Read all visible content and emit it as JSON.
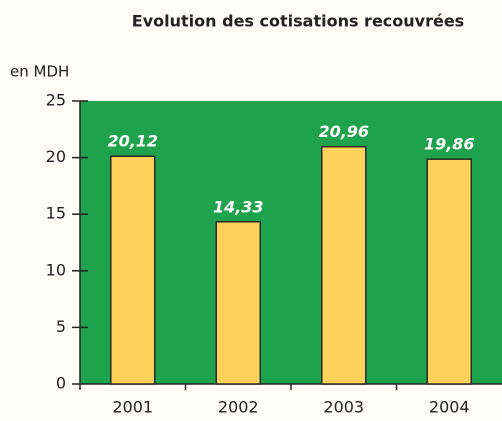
{
  "chart_data": {
    "type": "bar",
    "title": "Evolution des cotisations recouvrées",
    "ylabel": "en MDH",
    "categories": [
      "2001",
      "2002",
      "2003",
      "2004"
    ],
    "values": [
      20.12,
      14.33,
      20.96,
      19.86
    ],
    "value_labels": [
      "20,12",
      "14,33",
      "20,96",
      "19,86"
    ],
    "color": "#fdd15a",
    "background": "#1ea24b",
    "ylim": [
      0,
      25
    ],
    "yticks": [
      0,
      5,
      10,
      15,
      20,
      25
    ]
  }
}
